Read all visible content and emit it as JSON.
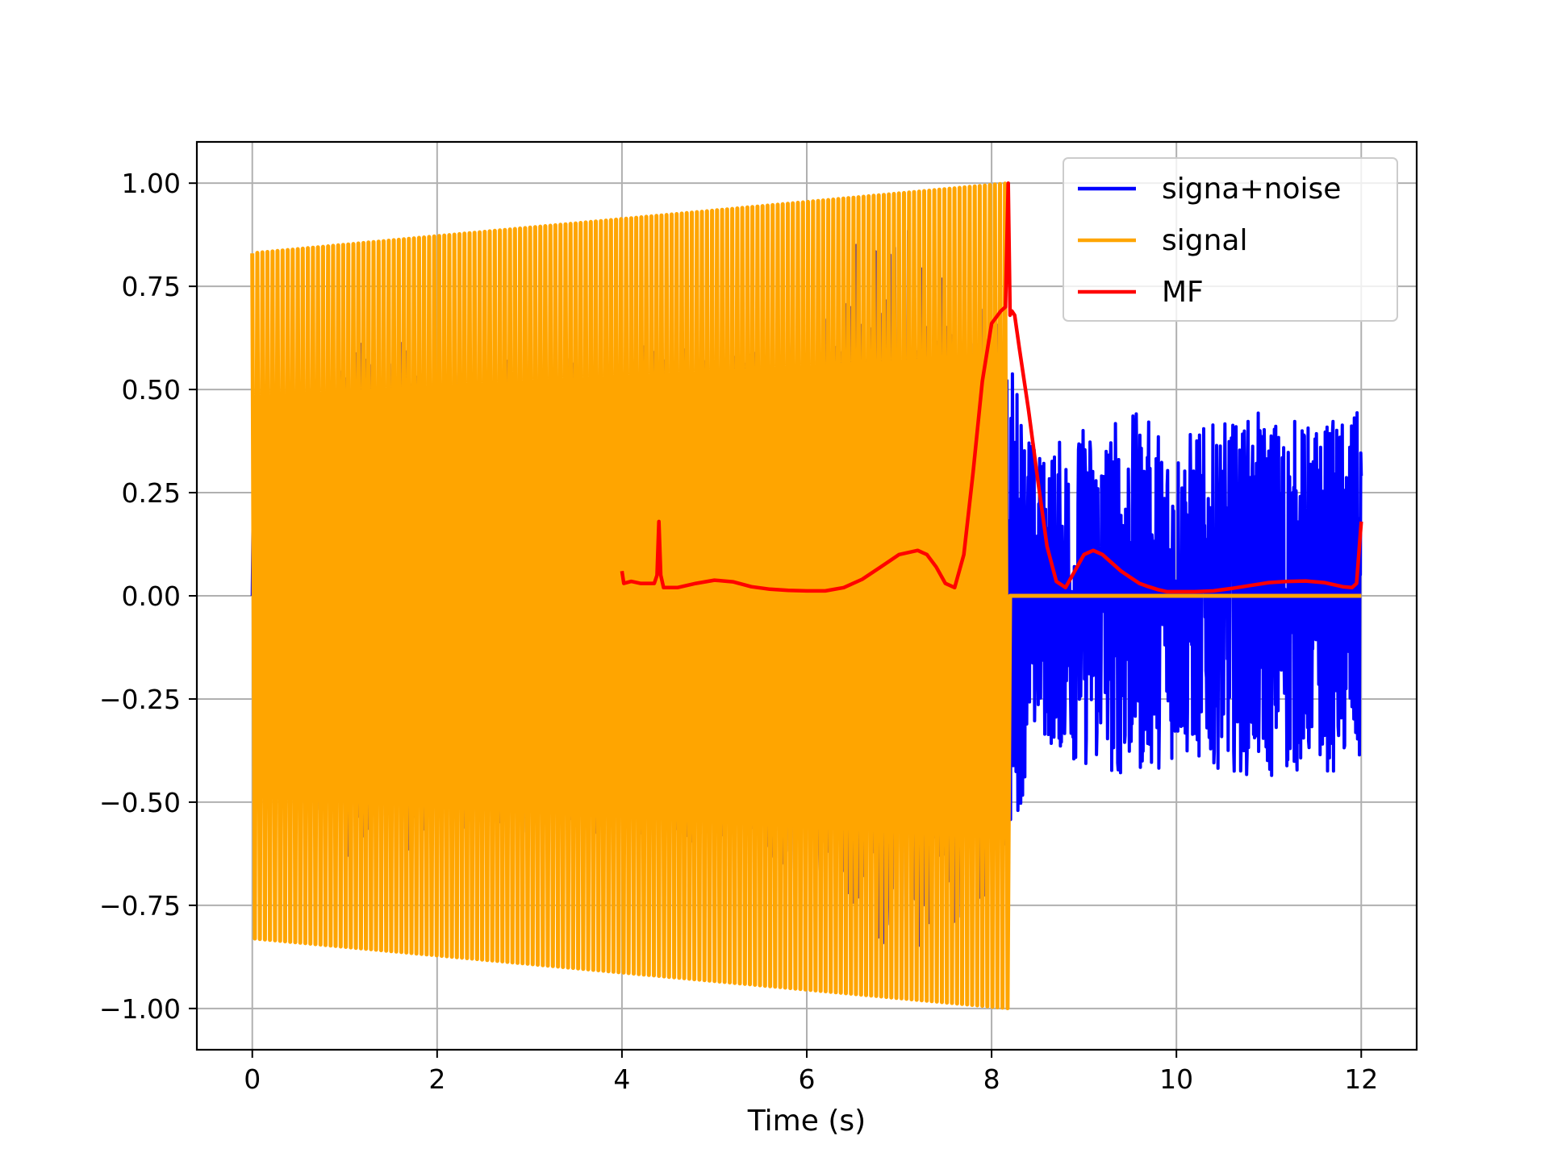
{
  "chart_data": {
    "type": "line",
    "title": "",
    "xlabel": "Time (s)",
    "ylabel": "",
    "xlim": [
      -0.6,
      12.6
    ],
    "ylim": [
      -1.1,
      1.1
    ],
    "xticks": [
      0,
      2,
      4,
      6,
      8,
      10,
      12
    ],
    "xtick_labels": [
      "0",
      "2",
      "4",
      "6",
      "8",
      "10",
      "12"
    ],
    "yticks": [
      1.0,
      0.75,
      0.5,
      0.25,
      0.0,
      -0.25,
      -0.5,
      -0.75,
      -1.0
    ],
    "ytick_labels": [
      "1.00",
      "0.75",
      "0.50",
      "0.25",
      "0.00",
      "−0.25",
      "−0.50",
      "−0.75",
      "−1.00"
    ],
    "grid": true,
    "legend_position": "top-right",
    "series": [
      {
        "name": "signa+noise",
        "color": "#0000ff",
        "kind": "noisy-chirp",
        "x": [
          0,
          1,
          2,
          3,
          4,
          5,
          6,
          7,
          8,
          8.2,
          8.5,
          9,
          9.5,
          10,
          10.5,
          11,
          11.5,
          12
        ],
        "y_envelope": [
          0.35,
          0.65,
          0.6,
          0.6,
          0.62,
          0.6,
          0.72,
          0.97,
          0.75,
          0.6,
          0.35,
          0.42,
          0.45,
          0.4,
          0.42,
          0.45,
          0.42,
          0.45
        ]
      },
      {
        "name": "signal",
        "color": "#ffa500",
        "kind": "chirp",
        "x_start": 0.0,
        "x_end": 8.2,
        "amplitude_start": 0.83,
        "amplitude_end": 1.0,
        "cycles": 150,
        "x_after": [
          8.2,
          12.0
        ],
        "y_after": [
          0.0,
          0.0
        ]
      },
      {
        "name": "MF",
        "color": "#ff0000",
        "kind": "line",
        "x": [
          4.0,
          4.02,
          4.1,
          4.2,
          4.35,
          4.38,
          4.4,
          4.42,
          4.45,
          4.6,
          4.8,
          5.0,
          5.2,
          5.4,
          5.6,
          5.8,
          6.0,
          6.2,
          6.4,
          6.6,
          6.8,
          7.0,
          7.2,
          7.3,
          7.4,
          7.5,
          7.6,
          7.7,
          7.8,
          7.9,
          8.0,
          8.1,
          8.15,
          8.18,
          8.2,
          8.22,
          8.25,
          8.3,
          8.4,
          8.5,
          8.6,
          8.7,
          8.8,
          8.9,
          9.0,
          9.1,
          9.2,
          9.3,
          9.4,
          9.5,
          9.6,
          9.7,
          9.8,
          9.9,
          10.0,
          10.2,
          10.4,
          10.6,
          10.8,
          11.0,
          11.2,
          11.4,
          11.6,
          11.8,
          11.9,
          11.95,
          12.0
        ],
        "y": [
          0.06,
          0.03,
          0.035,
          0.03,
          0.03,
          0.05,
          0.18,
          0.05,
          0.02,
          0.02,
          0.03,
          0.038,
          0.034,
          0.022,
          0.016,
          0.013,
          0.012,
          0.012,
          0.02,
          0.04,
          0.07,
          0.1,
          0.11,
          0.1,
          0.07,
          0.03,
          0.02,
          0.1,
          0.3,
          0.52,
          0.66,
          0.69,
          0.7,
          1.0,
          0.68,
          0.69,
          0.68,
          0.6,
          0.45,
          0.28,
          0.12,
          0.035,
          0.02,
          0.06,
          0.1,
          0.11,
          0.1,
          0.08,
          0.06,
          0.045,
          0.03,
          0.022,
          0.015,
          0.01,
          0.01,
          0.01,
          0.012,
          0.018,
          0.025,
          0.032,
          0.035,
          0.036,
          0.032,
          0.022,
          0.02,
          0.03,
          0.18
        ]
      }
    ]
  }
}
